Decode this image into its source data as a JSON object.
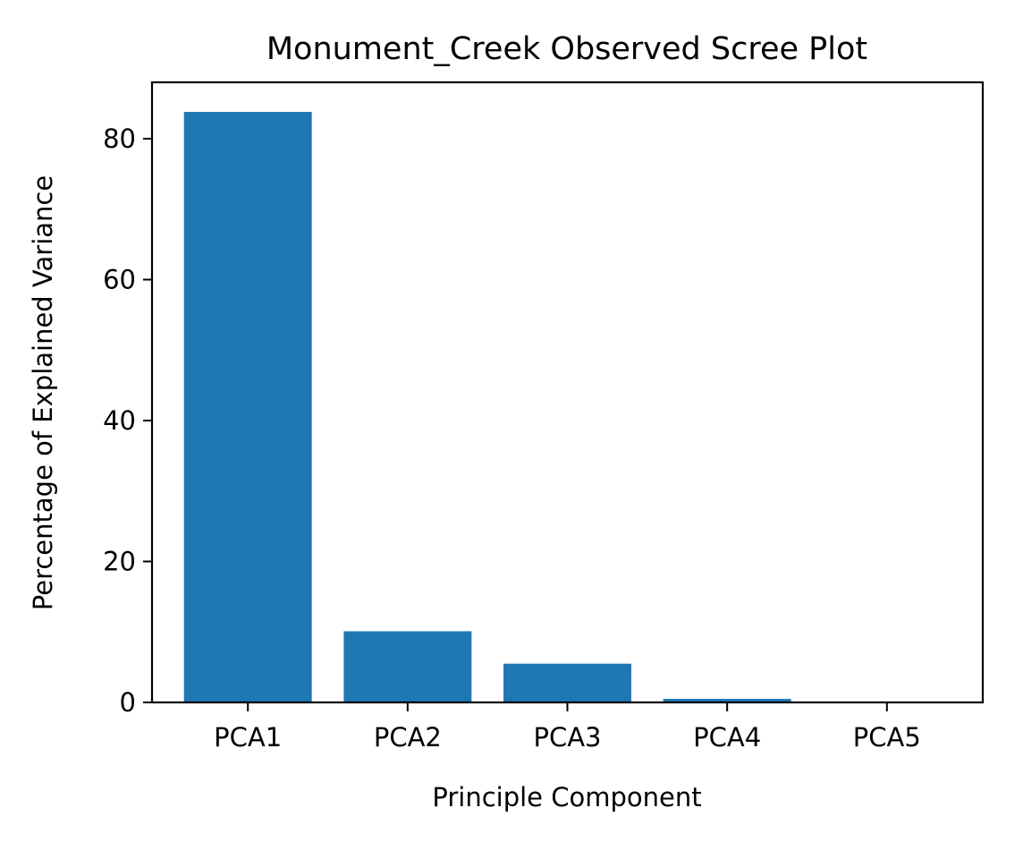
{
  "chart_data": {
    "type": "bar",
    "title": "Monument_Creek Observed Scree Plot",
    "xlabel": "Principle Component",
    "ylabel": "Percentage of Explained Variance",
    "categories": [
      "PCA1",
      "PCA2",
      "PCA3",
      "PCA4",
      "PCA5"
    ],
    "values": [
      83.8,
      10.1,
      5.5,
      0.5,
      0.1
    ],
    "ylim": [
      0,
      88
    ],
    "yticks": [
      0,
      20,
      40,
      60,
      80
    ],
    "grid": false,
    "legend": "none",
    "bar_color": "#1f77b4"
  }
}
